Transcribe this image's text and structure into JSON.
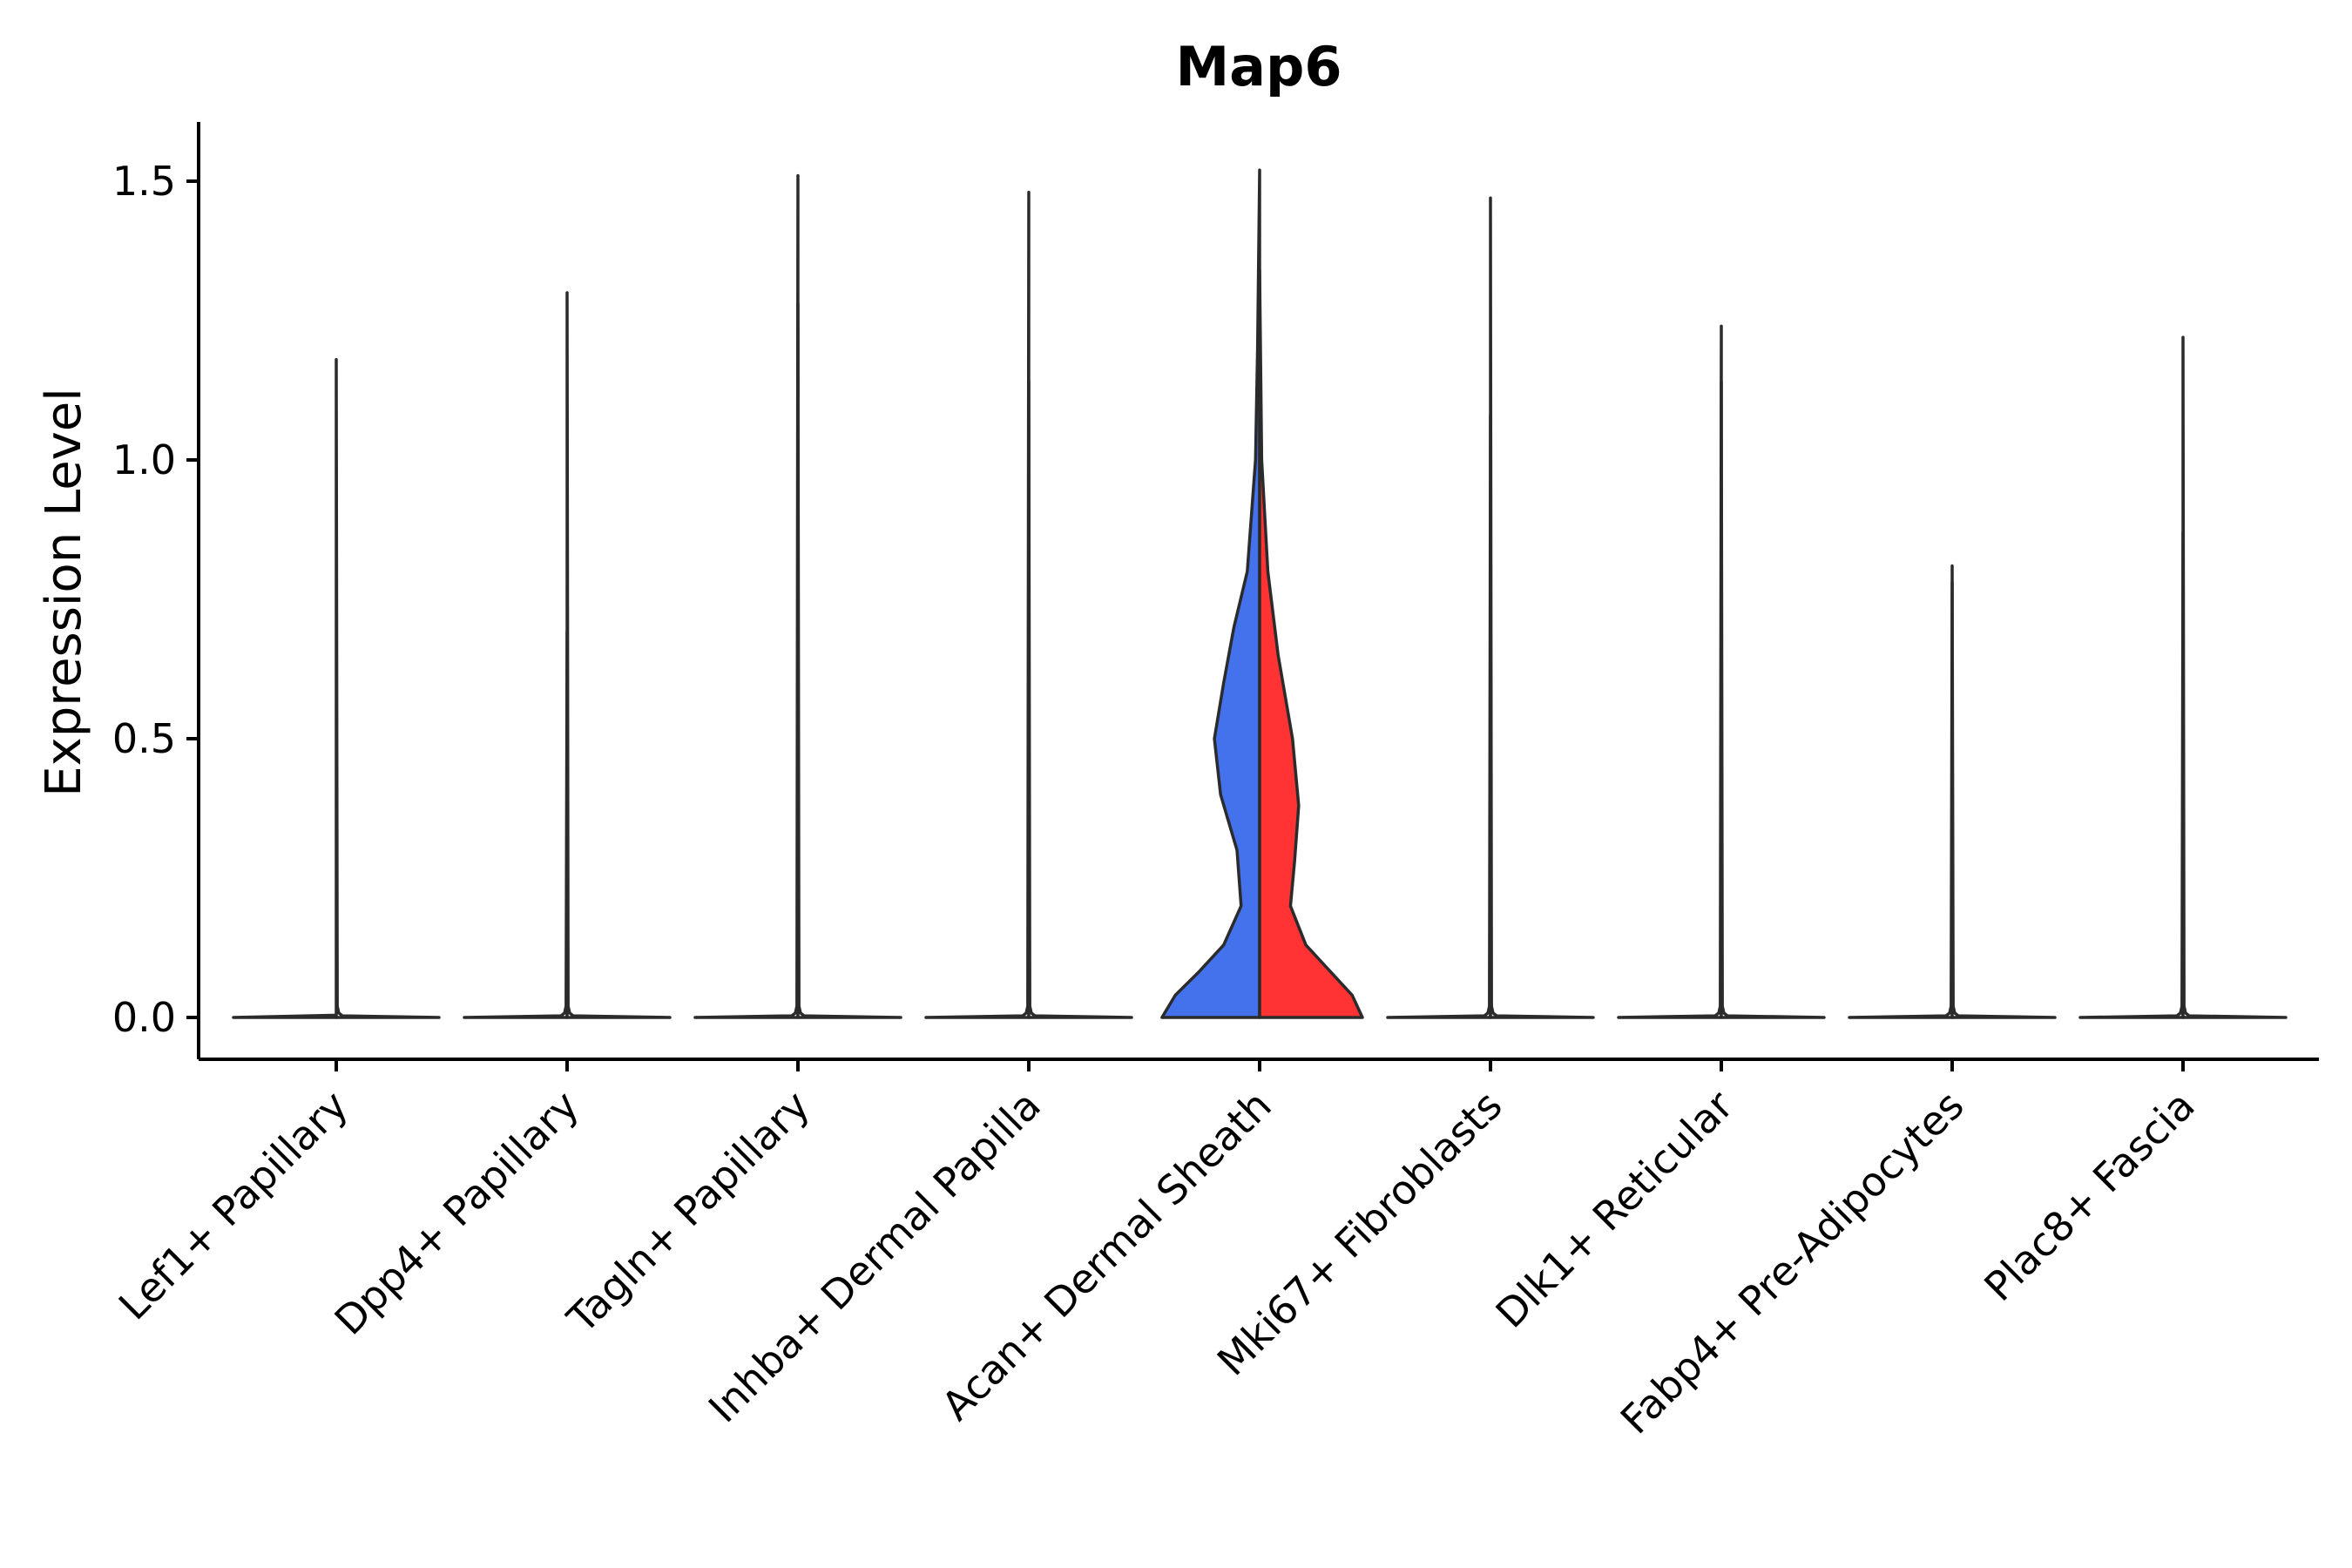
{
  "chart_data": {
    "type": "violin",
    "title": "Map6",
    "xlabel": "",
    "ylabel": "Expression Level",
    "ylim": [
      -0.08,
      1.6
    ],
    "yticks": [
      "0.0",
      "0.5",
      "1.0",
      "1.5"
    ],
    "grid": false,
    "legend": "none",
    "categories": [
      "Lef1+ Papillary",
      "Dpp4+ Papillary",
      "Tagln+ Papillary",
      "Inhba+ Dermal Papilla",
      "Acan+ Dermal Sheath",
      "Mki67+ Fibroblasts",
      "Dlk1+ Reticular",
      "Fabp4+ Pre-Adipocytes",
      "Plac8+ Fascia"
    ],
    "split_series_colors": {
      "left": "#4472EC",
      "right": "#FF3333",
      "other": "#ffffff"
    },
    "violins": [
      {
        "category": 0,
        "side": "left",
        "max": 0.0,
        "profile": []
      },
      {
        "category": 0,
        "side": "right",
        "max": 1.18,
        "profile": []
      },
      {
        "category": 1,
        "side": "left",
        "max": 0.69,
        "profile": []
      },
      {
        "category": 1,
        "side": "right",
        "max": 1.3,
        "profile": []
      },
      {
        "category": 2,
        "side": "left",
        "max": 1.51,
        "profile": []
      },
      {
        "category": 2,
        "side": "right",
        "max": 1.28,
        "profile": []
      },
      {
        "category": 3,
        "side": "left",
        "max": 1.48,
        "profile": []
      },
      {
        "category": 3,
        "side": "right",
        "max": 1.14,
        "profile": []
      },
      {
        "category": 4,
        "side": "left",
        "max": 1.52,
        "profile": [
          [
            0.0,
            0.95
          ],
          [
            0.04,
            0.82
          ],
          [
            0.08,
            0.6
          ],
          [
            0.13,
            0.35
          ],
          [
            0.2,
            0.18
          ],
          [
            0.3,
            0.22
          ],
          [
            0.4,
            0.38
          ],
          [
            0.5,
            0.44
          ],
          [
            0.6,
            0.35
          ],
          [
            0.7,
            0.25
          ],
          [
            0.8,
            0.12
          ],
          [
            1.0,
            0.04
          ],
          [
            1.2,
            0.02
          ],
          [
            1.52,
            0.0
          ]
        ]
      },
      {
        "category": 4,
        "side": "right",
        "max": 1.34,
        "profile": [
          [
            0.0,
            1.0
          ],
          [
            0.04,
            0.9
          ],
          [
            0.08,
            0.7
          ],
          [
            0.13,
            0.45
          ],
          [
            0.2,
            0.3
          ],
          [
            0.28,
            0.34
          ],
          [
            0.38,
            0.38
          ],
          [
            0.5,
            0.32
          ],
          [
            0.65,
            0.18
          ],
          [
            0.8,
            0.08
          ],
          [
            1.0,
            0.02
          ],
          [
            1.34,
            0.0
          ]
        ]
      },
      {
        "category": 5,
        "side": "left",
        "max": 1.08,
        "profile": []
      },
      {
        "category": 5,
        "side": "right",
        "max": 1.47,
        "profile": []
      },
      {
        "category": 6,
        "side": "left",
        "max": 1.24,
        "profile": []
      },
      {
        "category": 6,
        "side": "right",
        "max": 1.14,
        "profile": []
      },
      {
        "category": 7,
        "side": "left",
        "max": 0.78,
        "profile": []
      },
      {
        "category": 7,
        "side": "right",
        "max": 0.81,
        "profile": []
      },
      {
        "category": 8,
        "side": "left",
        "max": 0.87,
        "profile": []
      },
      {
        "category": 8,
        "side": "right",
        "max": 1.22,
        "profile": []
      }
    ]
  }
}
